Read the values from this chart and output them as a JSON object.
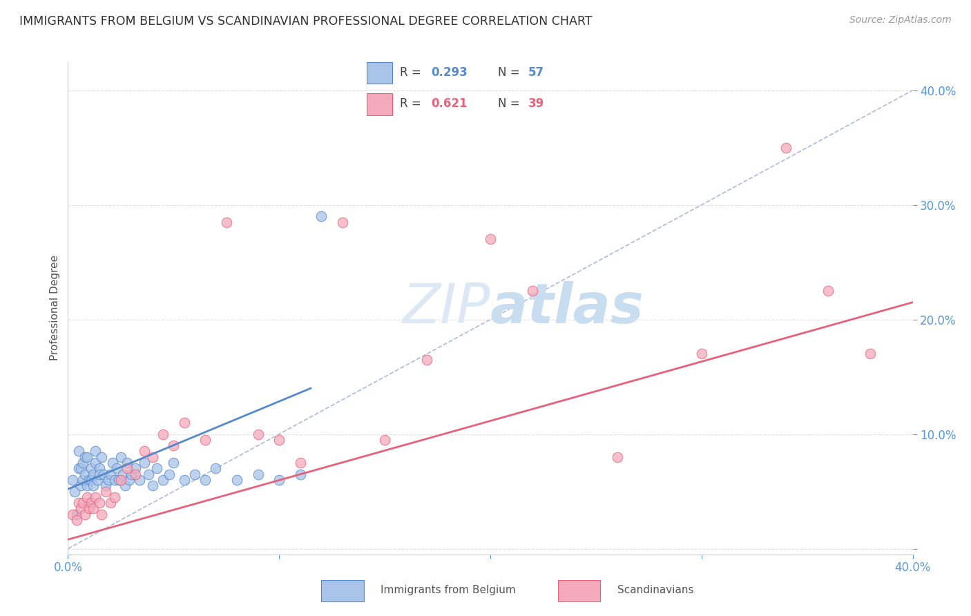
{
  "title": "IMMIGRANTS FROM BELGIUM VS SCANDINAVIAN PROFESSIONAL DEGREE CORRELATION CHART",
  "source": "Source: ZipAtlas.com",
  "ylabel": "Professional Degree",
  "xlim": [
    0.0,
    0.4
  ],
  "ylim": [
    -0.005,
    0.425
  ],
  "yticks": [
    0.0,
    0.1,
    0.2,
    0.3,
    0.4
  ],
  "color_blue": "#a8c4e8",
  "color_pink": "#f5aabb",
  "color_blue_line": "#5588cc",
  "color_pink_line": "#e8607a",
  "color_dashed": "#aabbdd",
  "color_axis_labels": "#5599dd",
  "color_title": "#333333",
  "color_source": "#999999",
  "color_grid": "#ddddee",
  "watermark_zip": "ZIP",
  "watermark_atlas": "atlas",
  "watermark_color": "#dce8f5",
  "blue_scatter_x": [
    0.002,
    0.003,
    0.004,
    0.005,
    0.005,
    0.006,
    0.006,
    0.007,
    0.007,
    0.008,
    0.008,
    0.009,
    0.009,
    0.01,
    0.01,
    0.011,
    0.011,
    0.012,
    0.012,
    0.013,
    0.013,
    0.014,
    0.015,
    0.015,
    0.016,
    0.017,
    0.018,
    0.019,
    0.02,
    0.021,
    0.022,
    0.023,
    0.024,
    0.025,
    0.026,
    0.027,
    0.028,
    0.029,
    0.03,
    0.032,
    0.034,
    0.036,
    0.038,
    0.04,
    0.042,
    0.045,
    0.048,
    0.05,
    0.055,
    0.06,
    0.065,
    0.07,
    0.08,
    0.09,
    0.1,
    0.11,
    0.12
  ],
  "blue_scatter_y": [
    0.06,
    0.05,
    0.03,
    0.07,
    0.085,
    0.055,
    0.07,
    0.06,
    0.075,
    0.08,
    0.065,
    0.055,
    0.08,
    0.06,
    0.04,
    0.06,
    0.07,
    0.065,
    0.055,
    0.075,
    0.085,
    0.06,
    0.07,
    0.065,
    0.08,
    0.065,
    0.055,
    0.06,
    0.065,
    0.075,
    0.06,
    0.07,
    0.06,
    0.08,
    0.065,
    0.055,
    0.075,
    0.06,
    0.065,
    0.07,
    0.06,
    0.075,
    0.065,
    0.055,
    0.07,
    0.06,
    0.065,
    0.075,
    0.06,
    0.065,
    0.06,
    0.07,
    0.06,
    0.065,
    0.06,
    0.065,
    0.29
  ],
  "pink_scatter_x": [
    0.002,
    0.004,
    0.005,
    0.006,
    0.007,
    0.008,
    0.009,
    0.01,
    0.011,
    0.012,
    0.013,
    0.015,
    0.016,
    0.018,
    0.02,
    0.022,
    0.025,
    0.028,
    0.032,
    0.036,
    0.04,
    0.045,
    0.05,
    0.055,
    0.065,
    0.075,
    0.09,
    0.1,
    0.11,
    0.13,
    0.15,
    0.17,
    0.2,
    0.22,
    0.26,
    0.3,
    0.34,
    0.36,
    0.38
  ],
  "pink_scatter_y": [
    0.03,
    0.025,
    0.04,
    0.035,
    0.04,
    0.03,
    0.045,
    0.035,
    0.04,
    0.035,
    0.045,
    0.04,
    0.03,
    0.05,
    0.04,
    0.045,
    0.06,
    0.07,
    0.065,
    0.085,
    0.08,
    0.1,
    0.09,
    0.11,
    0.095,
    0.285,
    0.1,
    0.095,
    0.075,
    0.285,
    0.095,
    0.165,
    0.27,
    0.225,
    0.08,
    0.17,
    0.35,
    0.225,
    0.17
  ],
  "blue_line_x": [
    0.0,
    0.115
  ],
  "blue_line_y": [
    0.052,
    0.14
  ],
  "pink_line_x": [
    0.0,
    0.4
  ],
  "pink_line_y": [
    0.008,
    0.215
  ],
  "dashed_line_x": [
    0.0,
    0.4
  ],
  "dashed_line_y": [
    0.0,
    0.4
  ]
}
